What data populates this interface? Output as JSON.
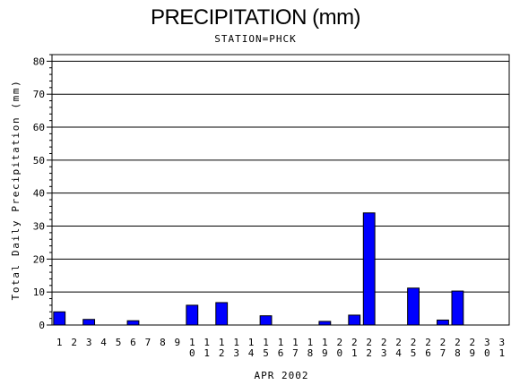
{
  "chart_data": {
    "type": "bar",
    "title": "PRECIPITATION (mm)",
    "subtitle": "STATION=PHCK",
    "xlabel": "APR 2002",
    "ylabel": "Total Daily Precipitation (mm)",
    "ylim": [
      0,
      82
    ],
    "yticks": [
      0,
      10,
      20,
      30,
      40,
      50,
      60,
      70,
      80
    ],
    "grid": true,
    "bar_color": "#0000ff",
    "categories": [
      "1",
      "2",
      "3",
      "4",
      "5",
      "6",
      "7",
      "8",
      "9",
      "10",
      "11",
      "12",
      "13",
      "14",
      "15",
      "16",
      "17",
      "18",
      "19",
      "20",
      "21",
      "22",
      "23",
      "24",
      "25",
      "26",
      "27",
      "28",
      "29",
      "30",
      "31"
    ],
    "values": [
      4.0,
      0,
      1.7,
      0,
      0,
      1.3,
      0,
      0,
      0,
      6.0,
      0,
      6.8,
      0,
      0,
      2.8,
      0,
      0,
      0,
      1.1,
      0,
      3.0,
      34.0,
      0,
      0,
      11.2,
      0,
      1.5,
      10.3,
      0,
      0,
      0
    ]
  }
}
